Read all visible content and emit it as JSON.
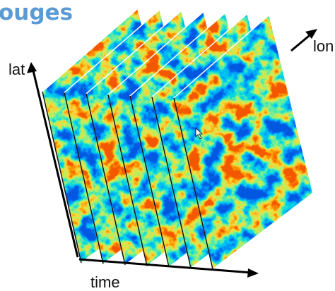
{
  "header": {
    "title": "ouges"
  },
  "axes": {
    "lat": "lat",
    "lon": "lon",
    "time": "time"
  }
}
